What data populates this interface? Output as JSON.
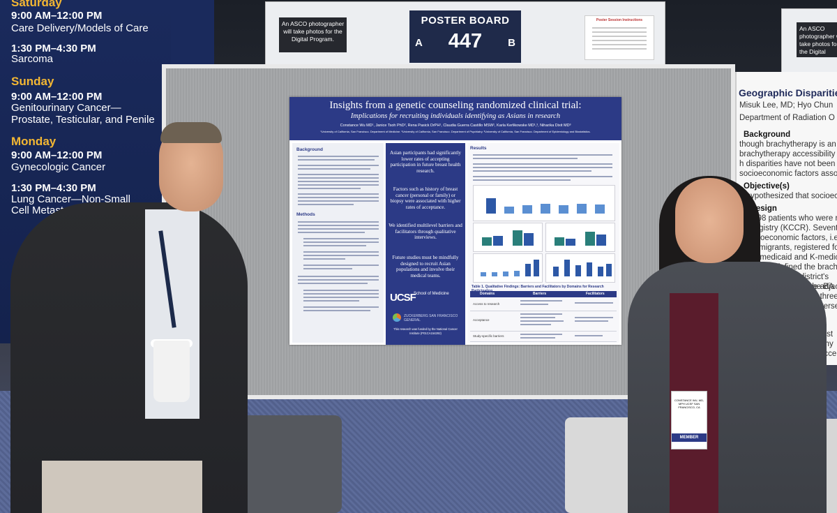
{
  "schedule": {
    "entries": [
      {
        "day": "Saturday"
      },
      {
        "time": "9:00 AM–12:00 PM",
        "topic": "Care Delivery/Models of Care"
      },
      {
        "time": "1:30 PM–4:30 PM",
        "topic": "Sarcoma"
      },
      {
        "day": "Sunday"
      },
      {
        "time": "9:00 AM–12:00 PM",
        "topic": "Genitourinary Cancer—",
        "topic2": "Prostate, Testicular, and Penile"
      },
      {
        "day": "Monday"
      },
      {
        "time": "9:00 AM–12:00 PM",
        "topic": "Gynecologic Cancer"
      },
      {
        "time": "1:30 PM–4:30 PM",
        "topic": "Lung Cancer—Non-Small",
        "topic2": "Cell Metastatic"
      }
    ]
  },
  "sign": {
    "photo_note": "An ASCO photographer will take photos for the Digital Program.",
    "board_label": "POSTER BOARD",
    "side_a": "A",
    "board_number": "447",
    "side_b": "B",
    "instructions_title": "Poster Session Instructions"
  },
  "sign2": {
    "photo_note": "An ASCO photographer will take photos for the Digital Program."
  },
  "poster": {
    "title": "Insights from a genetic counseling randomized clinical trial:",
    "subtitle": "Implications for recruiting individuals identifying as Asians in research",
    "authors": "Constance Wu MD¹, Janice Tsoh PhD², Rena Pasick DrPH¹, Claudia Guerra Castillo MSW¹, Karla Kerlikowske MD¹,³, Niharika Dixit MD³",
    "affiliations": "¹University of California, San Francisco. Department of Medicine. ²University of California, San Francisco. Department of Psychiatry. ³University of California, San Francisco. Department of Epidemiology and Biostatistics.",
    "left_sections": [
      "Background",
      "Methods"
    ],
    "findings": [
      "Asian participants had significantly lower rates of accepting participation in future breast health research.",
      "Factors such as history of breast cancer (personal or family) or biopsy were associated with higher rates of acceptance.",
      "We identified multilevel barriers and facilitators through qualitative interviews.",
      "Future studies must be mindfully designed to recruit Asian populations and involve their medical teams."
    ],
    "ucsf_logo": "UCSF",
    "ucsf_school": "School of Medicine",
    "zsfg_text": "ZUCKERBERG SAN FRANCISCO GENERAL",
    "funding": "This research was funded by the National Cancer Institute (P01CA154292)",
    "results_heading": "Results",
    "table_title": "Table 1. Qualitative Findings: Barriers and Facilitators by Domains for Research Participation",
    "table_headers": [
      "Domains",
      "Barriers",
      "Facilitators"
    ],
    "table_domains": [
      "Access to research",
      "Acceptance",
      "Study-specific barriers"
    ]
  },
  "badge": {
    "name": "CONSTANCE WU, MD, MPH UCSF SAN FRANCISCO, CA",
    "member": "MEMBER"
  },
  "right_poster": {
    "title": "Geographic Disparities i",
    "authors": "Misuk Lee, MD; Hyo Chun",
    "dept": "Department of Radiation O",
    "background_h": "Background",
    "bg_lines": [
      "though brachytherapy is an esse",
      "brachytherapy accessibility for cervi",
      "h disparities have not been clear",
      "socioeconomic factors associated w"
    ],
    "objective_h": "Objective(s)",
    "objective_line": "e hypothesized that socioeconom",
    "design_h": "y Design",
    "design_lines": [
      "of 2998 patients who were r",
      "er Registry (KCCR). Sevente",
      "e socioeconomic factors, i.e.",
      "ge immigrants, registered fo",
      "S). K-medicaid and K-medic",
      "tively. We defined the brach",
      "ases. Also, each district's",
      "ssociation between the BA"
    ],
    "lower_lines": [
      "e adjacent n",
      "t, three no",
      "inversel",
      "e first",
      "raphy",
      "y acce"
    ]
  }
}
